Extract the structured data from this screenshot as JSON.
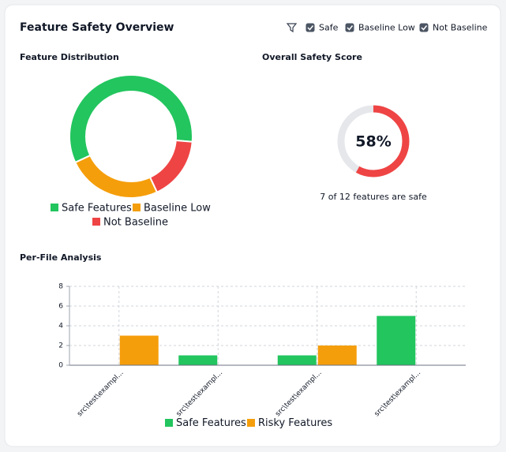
{
  "header": {
    "title": "Feature Safety Overview",
    "filters": [
      {
        "label": "Safe",
        "checked": true
      },
      {
        "label": "Baseline Low",
        "checked": true
      },
      {
        "label": "Not Baseline",
        "checked": true
      }
    ]
  },
  "chart_data": [
    {
      "type": "pie",
      "title": "Feature Distribution",
      "donut": true,
      "categories": [
        "Safe Features",
        "Baseline Low",
        "Not Baseline"
      ],
      "values": [
        7,
        3,
        2
      ],
      "colors": [
        "#22c55e",
        "#f59e0b",
        "#ef4444"
      ]
    },
    {
      "type": "gauge",
      "title": "Overall Safety Score",
      "values": [
        58
      ],
      "value_labels": [
        "58%"
      ],
      "ylim": [
        0,
        100
      ],
      "color": "#ef4444",
      "track_color": "#e5e7eb",
      "caption": "7 of 12 features are safe"
    },
    {
      "type": "bar",
      "title": "Per-File Analysis",
      "categories": [
        "src\\test\\exampl...",
        "src\\test\\exampl...",
        "src\\test\\exampl...",
        "src\\test\\exampl..."
      ],
      "series": [
        {
          "name": "Safe Features",
          "color": "#22c55e",
          "values": [
            0,
            1,
            1,
            5
          ]
        },
        {
          "name": "Risky Features",
          "color": "#f59e0b",
          "values": [
            3,
            0,
            2,
            0
          ]
        }
      ],
      "ylim": [
        0,
        8
      ],
      "yticks": [
        0,
        2,
        4,
        6,
        8
      ],
      "grid": true,
      "legend": "bottom"
    }
  ]
}
